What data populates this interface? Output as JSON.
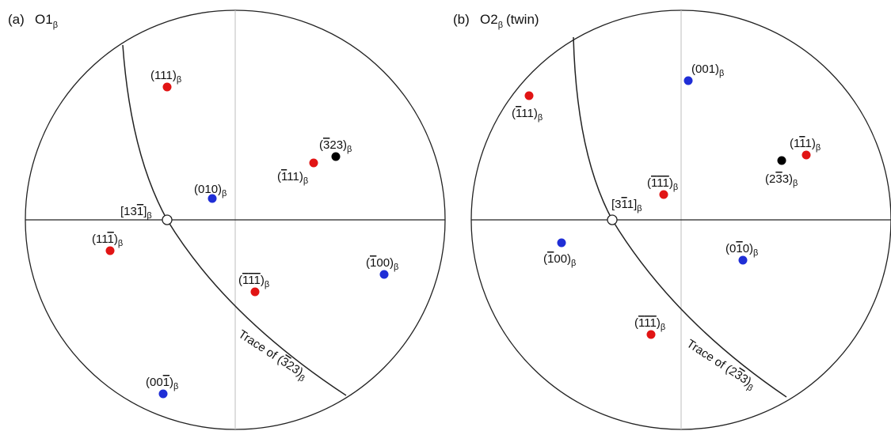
{
  "colors": {
    "red": "#e11414",
    "blue": "#1f2ed6",
    "black": "#000000",
    "circle": "#222222",
    "axis": "#bdbdbd"
  },
  "panels": [
    {
      "letter": "(a)",
      "title": "O1",
      "title_sub": "β",
      "pole": {
        "label": "[13",
        "bar": "1",
        "close": "]",
        "sub": "β"
      },
      "trace": {
        "pre": "Trace of (",
        "bar": "3",
        "post": "23)",
        "sub": "β"
      },
      "points": [
        {
          "name": "pole-111",
          "color": "red",
          "parts": [
            [
              "(",
              ""
            ],
            [
              "1",
              ""
            ],
            [
              "1",
              ""
            ],
            [
              "1",
              ""
            ],
            [
              ")",
              ""
            ]
          ]
        },
        {
          "name": "pole-m323",
          "color": "black",
          "parts": [
            [
              "(",
              ""
            ],
            [
              "3",
              "bar"
            ],
            [
              "2",
              ""
            ],
            [
              "3",
              ""
            ],
            [
              ")",
              ""
            ]
          ]
        },
        {
          "name": "pole-m111",
          "color": "red",
          "parts": [
            [
              "(",
              ""
            ],
            [
              "1",
              "bar"
            ],
            [
              "1",
              ""
            ],
            [
              "1",
              ""
            ],
            [
              ")",
              ""
            ]
          ]
        },
        {
          "name": "pole-010",
          "color": "blue",
          "parts": [
            [
              "(",
              ""
            ],
            [
              "0",
              ""
            ],
            [
              "1",
              ""
            ],
            [
              "0",
              ""
            ],
            [
              ")",
              ""
            ]
          ]
        },
        {
          "name": "pole-11m1",
          "color": "red",
          "parts": [
            [
              "(",
              ""
            ],
            [
              "1",
              ""
            ],
            [
              "1",
              ""
            ],
            [
              "1",
              "bar"
            ],
            [
              ")",
              ""
            ]
          ]
        },
        {
          "name": "pole-m100",
          "color": "blue",
          "parts": [
            [
              "(",
              ""
            ],
            [
              "1",
              "bar"
            ],
            [
              "0",
              ""
            ],
            [
              "0",
              ""
            ],
            [
              ")",
              ""
            ]
          ]
        },
        {
          "name": "pole-m1m1m1",
          "color": "red",
          "parts": [
            [
              "(",
              ""
            ],
            [
              "1",
              "bar"
            ],
            [
              "1",
              "bar"
            ],
            [
              "1",
              "bar"
            ],
            [
              ")",
              ""
            ]
          ]
        },
        {
          "name": "pole-00m1",
          "color": "blue",
          "parts": [
            [
              "(",
              ""
            ],
            [
              "0",
              ""
            ],
            [
              "0",
              ""
            ],
            [
              "1",
              "bar"
            ],
            [
              ")",
              ""
            ]
          ]
        }
      ]
    },
    {
      "letter": "(b)",
      "title": "O2",
      "title_sub": "β",
      "title_suffix": "(twin)",
      "pole": {
        "label": "[3",
        "bar": "1",
        "close": "1]",
        "sub": "β",
        "bar_first": true
      },
      "trace": {
        "pre": "Trace of (2",
        "bar": "3",
        "post": "3)",
        "sub": "β"
      },
      "points": [
        {
          "name": "pole-001",
          "color": "blue",
          "parts": [
            [
              "(",
              ""
            ],
            [
              "0",
              ""
            ],
            [
              "0",
              ""
            ],
            [
              "1",
              ""
            ],
            [
              ")",
              ""
            ]
          ]
        },
        {
          "name": "pole-m111-b",
          "color": "red",
          "parts": [
            [
              "(",
              ""
            ],
            [
              "1",
              "bar"
            ],
            [
              "1",
              ""
            ],
            [
              "1",
              ""
            ],
            [
              ")",
              ""
            ]
          ]
        },
        {
          "name": "pole-1m11",
          "color": "red",
          "parts": [
            [
              "(",
              ""
            ],
            [
              "1",
              ""
            ],
            [
              "1",
              "bar"
            ],
            [
              "1",
              ""
            ],
            [
              ")",
              ""
            ]
          ]
        },
        {
          "name": "pole-2m33",
          "color": "black",
          "parts": [
            [
              "(",
              ""
            ],
            [
              "2",
              ""
            ],
            [
              "3",
              "bar"
            ],
            [
              "3",
              ""
            ],
            [
              ")",
              ""
            ]
          ]
        },
        {
          "name": "pole-m1m1m1-b",
          "color": "red",
          "parts": [
            [
              "(",
              ""
            ],
            [
              "1",
              "bar"
            ],
            [
              "1",
              "bar"
            ],
            [
              "1",
              "bar"
            ],
            [
              ")",
              ""
            ]
          ]
        },
        {
          "name": "pole-m100-b",
          "color": "blue",
          "parts": [
            [
              "(",
              ""
            ],
            [
              "1",
              "bar"
            ],
            [
              "0",
              ""
            ],
            [
              "0",
              ""
            ],
            [
              ")",
              ""
            ]
          ]
        },
        {
          "name": "pole-0m10",
          "color": "blue",
          "parts": [
            [
              "(",
              ""
            ],
            [
              "0",
              ""
            ],
            [
              "1",
              "bar"
            ],
            [
              "0",
              ""
            ],
            [
              ")",
              ""
            ]
          ]
        },
        {
          "name": "pole-m1m1m1-c",
          "color": "red",
          "parts": [
            [
              "(",
              ""
            ],
            [
              "1",
              "bar"
            ],
            [
              "1",
              "bar"
            ],
            [
              "1",
              "bar"
            ],
            [
              ")",
              ""
            ]
          ]
        }
      ]
    }
  ]
}
